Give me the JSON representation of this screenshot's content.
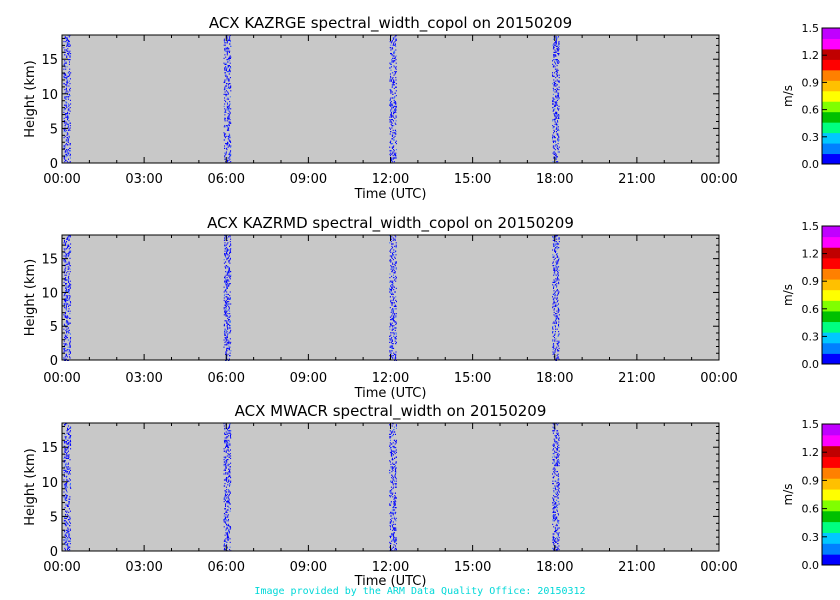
{
  "footer": "Image provided by the ARM Data Quality Office: 20150312",
  "colorbar": {
    "unit": "m/s",
    "ticks": [
      "0.0",
      "0.3",
      "0.6",
      "0.9",
      "1.2",
      "1.5"
    ],
    "range": [
      0.0,
      1.5
    ],
    "colors": [
      "#0000ff",
      "#0080ff",
      "#00c8ff",
      "#00ff80",
      "#00c000",
      "#80ff00",
      "#ffff00",
      "#ffc000",
      "#ff8000",
      "#ff0000",
      "#c00000",
      "#ff00ff",
      "#c000ff"
    ]
  },
  "chart_data": [
    {
      "type": "heatmap",
      "title": "ACX KAZRGE spectral_width_copol on 20150209",
      "xlabel": "Time (UTC)",
      "ylabel": "Height (km)",
      "xticks": [
        "00:00",
        "03:00",
        "06:00",
        "09:00",
        "12:00",
        "15:00",
        "18:00",
        "21:00",
        "00:00"
      ],
      "yticks": [
        "0",
        "5",
        "10",
        "15"
      ],
      "xlim_hours": [
        0,
        24
      ],
      "ylim_km": [
        0,
        18.5
      ],
      "background_color": "#c8c8c8",
      "data_color": "#0000ff",
      "approx_value_ms": 0.0,
      "data_bands_hours": [
        [
          0.05,
          0.3
        ],
        [
          5.9,
          6.15
        ],
        [
          11.95,
          12.2
        ],
        [
          17.9,
          18.15
        ]
      ]
    },
    {
      "type": "heatmap",
      "title": "ACX KAZRMD spectral_width_copol on 20150209",
      "xlabel": "Time (UTC)",
      "ylabel": "Height (km)",
      "xticks": [
        "00:00",
        "03:00",
        "06:00",
        "09:00",
        "12:00",
        "15:00",
        "18:00",
        "21:00",
        "00:00"
      ],
      "yticks": [
        "0",
        "5",
        "10",
        "15"
      ],
      "xlim_hours": [
        0,
        24
      ],
      "ylim_km": [
        0,
        18.5
      ],
      "background_color": "#c8c8c8",
      "data_color": "#0000ff",
      "approx_value_ms": 0.0,
      "data_bands_hours": [
        [
          0.05,
          0.3
        ],
        [
          5.9,
          6.15
        ],
        [
          11.95,
          12.2
        ],
        [
          17.9,
          18.15
        ]
      ]
    },
    {
      "type": "heatmap",
      "title": "ACX MWACR spectral_width on 20150209",
      "xlabel": "Time (UTC)",
      "ylabel": "Height (km)",
      "xticks": [
        "00:00",
        "03:00",
        "06:00",
        "09:00",
        "12:00",
        "15:00",
        "18:00",
        "21:00",
        "00:00"
      ],
      "yticks": [
        "0",
        "5",
        "10",
        "15"
      ],
      "xlim_hours": [
        0,
        24
      ],
      "ylim_km": [
        0,
        18.5
      ],
      "background_color": "#c8c8c8",
      "data_color": "#0000ff",
      "approx_value_ms": 0.0,
      "data_bands_hours": [
        [
          0.05,
          0.3
        ],
        [
          5.9,
          6.15
        ],
        [
          11.95,
          12.2
        ],
        [
          17.9,
          18.15
        ]
      ]
    }
  ]
}
